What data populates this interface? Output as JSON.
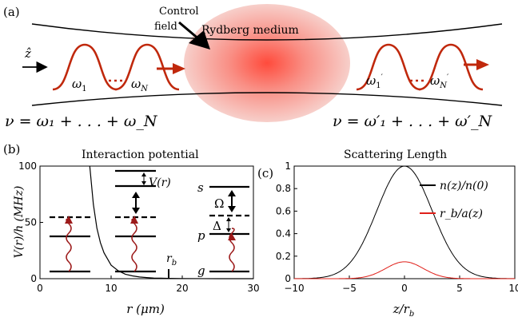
{
  "panel_a": {
    "label": "(a)",
    "control_field": [
      "Control",
      "field"
    ],
    "medium_label": "Rydberg medium",
    "axis_label": "ẑ",
    "pulse_labels_in": [
      "ω",
      "1",
      "ω",
      "N"
    ],
    "pulse_labels_out": [
      "ω",
      "1",
      "′",
      "ω",
      "N",
      "′"
    ],
    "eq_left": "ν = ω₁ + . . . + ω_N",
    "eq_right": "ν = ω′₁ + . . . + ω′_N",
    "colors": {
      "pulse": "#c0280c",
      "medium_center": "#ff4a3a",
      "medium_edge": "#f7c5c0"
    }
  },
  "panel_b": {
    "label": "(b)",
    "title": "Interaction potential",
    "ylabel": "V(r)/h (MHz)",
    "xlabel": "r (μm)",
    "rb_label": "r",
    "rb_sub": "b",
    "vr_label": "V(r)",
    "level_labels": {
      "s": "s",
      "p": "p",
      "g": "g",
      "omega": "Ω",
      "delta": "Δ"
    }
  },
  "panel_c": {
    "label": "(c)",
    "title": "Scattering Length",
    "xlabel": "z/r",
    "xlabel_sub": "b",
    "legend": [
      {
        "label": "n(z)/n(0)",
        "color": "#000000"
      },
      {
        "label": "r_b/a(z)",
        "color": "#e0201a"
      }
    ]
  },
  "chart_data": [
    {
      "type": "line",
      "title": "Interaction potential",
      "xlabel": "r (μm)",
      "ylabel": "V(r)/h (MHz)",
      "xlim": [
        0,
        30
      ],
      "ylim": [
        0,
        100
      ],
      "xticks": [
        0,
        10,
        20,
        30
      ],
      "yticks": [
        0,
        50,
        100
      ],
      "series": [
        {
          "x": [
            7,
            7.5,
            8,
            8.5,
            9,
            10,
            11,
            12,
            13,
            14,
            15,
            16,
            17,
            18,
            20,
            25,
            30
          ],
          "y": [
            100,
            66,
            45,
            32,
            23,
            12,
            7,
            4,
            2.5,
            1.5,
            1,
            0.6,
            0.4,
            0.25,
            0.1,
            0,
            0
          ]
        }
      ],
      "annotations": {
        "rb_x": 18
      }
    },
    {
      "type": "line",
      "title": "Scattering Length",
      "xlabel": "z/r_b",
      "xlim": [
        -10,
        10
      ],
      "ylim": [
        0,
        1
      ],
      "xticks": [
        -10,
        -5,
        0,
        5,
        10
      ],
      "yticks": [
        0,
        0.2,
        0.4,
        0.6,
        0.8,
        1
      ],
      "legend_position": "top-right",
      "series": [
        {
          "name": "n(z)/n(0)",
          "sigma": 2.5,
          "amplitude": 1.0,
          "x": [
            -10,
            -8,
            -6,
            -5,
            -4,
            -3,
            -2,
            -1,
            0,
            1,
            2,
            3,
            4,
            5,
            6,
            8,
            10
          ],
          "y": [
            0.0003,
            0.006,
            0.056,
            0.135,
            0.278,
            0.487,
            0.726,
            0.923,
            1.0,
            0.923,
            0.726,
            0.487,
            0.278,
            0.135,
            0.056,
            0.006,
            0.0003
          ]
        },
        {
          "name": "r_b/a(z)",
          "sigma": 1.7,
          "amplitude": 0.15,
          "x": [
            -6,
            -5,
            -4,
            -3,
            -2,
            -1,
            0,
            1,
            2,
            3,
            4,
            5,
            6
          ],
          "y": [
            0.0003,
            0.002,
            0.009,
            0.032,
            0.075,
            0.127,
            0.15,
            0.127,
            0.075,
            0.032,
            0.009,
            0.002,
            0.0003
          ]
        }
      ]
    }
  ]
}
